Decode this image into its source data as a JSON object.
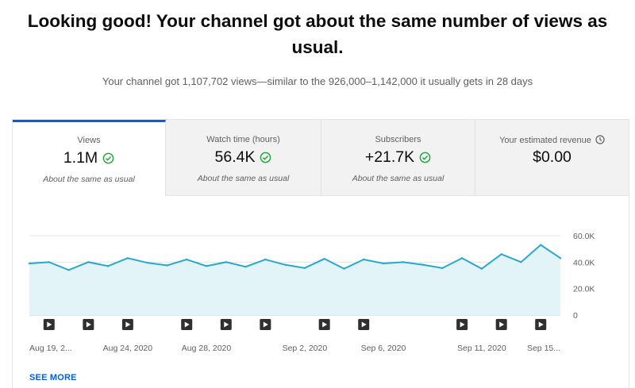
{
  "headline": "Looking good! Your channel got about the same number of views as usual.",
  "subline": "Your channel got 1,107,702 views—similar to the 926,000–1,142,000 it usually gets in 28 days",
  "tabs": [
    {
      "label": "Views",
      "value": "1.1M",
      "note": "About the same as usual",
      "icon": "check-circle-icon",
      "active": true
    },
    {
      "label": "Watch time (hours)",
      "value": "56.4K",
      "note": "About the same as usual",
      "icon": "check-circle-icon",
      "active": false
    },
    {
      "label": "Subscribers",
      "value": "+21.7K",
      "note": "About the same as usual",
      "icon": "check-circle-icon",
      "active": false
    },
    {
      "label": "Your estimated revenue",
      "value": "$0.00",
      "note": "",
      "icon": "clock-icon",
      "active": false
    }
  ],
  "colors": {
    "accent": "#065fd4",
    "check": "#2ba640",
    "line": "#29a8cf",
    "fill": "#e3f4f9"
  },
  "see_more": "SEE MORE",
  "chart_data": {
    "type": "area",
    "series": [
      {
        "values": [
          39000,
          40000,
          34000,
          40000,
          37000,
          43000,
          39500,
          37500,
          42000,
          37000,
          40000,
          36500,
          42000,
          38000,
          35500,
          42500,
          35000,
          42000,
          39000,
          40000,
          38000,
          35500,
          43000,
          35000,
          46000,
          40000,
          53000,
          43000
        ]
      }
    ],
    "x_labels": [
      "Aug 19, 2...",
      "Aug 24, 2020",
      "Aug 28, 2020",
      "Sep 2, 2020",
      "Sep 6, 2020",
      "Sep 11, 2020",
      "Sep 15..."
    ],
    "x_label_index": [
      0,
      5,
      9,
      14,
      18,
      23,
      26
    ],
    "y_ticks": [
      "60.0K",
      "40.0K",
      "20.0K",
      "0"
    ],
    "y_tick_values": [
      60000,
      40000,
      20000,
      0
    ],
    "ylim": [
      0,
      60000
    ],
    "grid": true,
    "video_markers_index": [
      1,
      3,
      5,
      8,
      10,
      12,
      15,
      17,
      22,
      24,
      26
    ]
  }
}
